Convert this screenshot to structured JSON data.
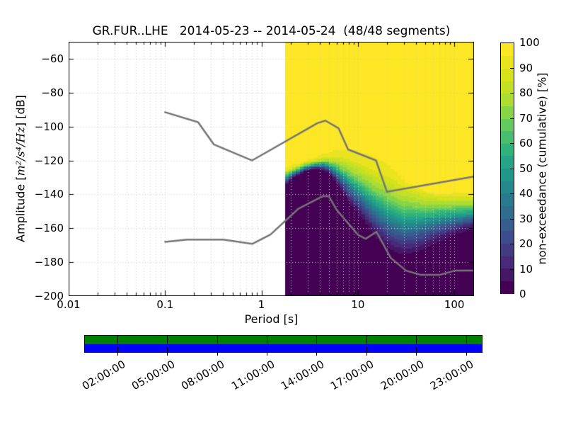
{
  "figure": {
    "title": "GR.FUR..LHE   2014-05-23 -- 2014-05-24  (48/48 segments)"
  },
  "axes": {
    "xlabel": "Period [s]",
    "ylabel_prefix": "Amplitude [",
    "ylabel_math": "m²/s⁴/Hz",
    "ylabel_suffix": "] [dB]",
    "x_tick_labels": [
      "0.01",
      "0.1",
      "1",
      "10",
      "100"
    ],
    "x_tick_values": [
      0.01,
      0.1,
      1,
      10,
      100
    ],
    "y_tick_labels": [
      "−60",
      "−80",
      "−100",
      "−120",
      "−140",
      "−160",
      "−180",
      "−200"
    ],
    "y_tick_values": [
      -60,
      -80,
      -100,
      -120,
      -140,
      -160,
      -180,
      -200
    ],
    "xlim": [
      0.01,
      160
    ],
    "ylim": [
      -200,
      -50
    ]
  },
  "colorbar": {
    "label": "non-exceedance (cumulative) [%]",
    "tick_values": [
      0,
      10,
      20,
      30,
      40,
      50,
      60,
      70,
      80,
      90,
      100
    ],
    "n_color_steps": 20
  },
  "coverage": {
    "tick_labels": [
      "02:00:00",
      "05:00:00",
      "08:00:00",
      "11:00:00",
      "14:00:00",
      "17:00:00",
      "20:00:00",
      "23:00:00"
    ],
    "tick_hours": [
      2,
      5,
      8,
      11,
      14,
      17,
      20,
      23
    ],
    "span_hours": 24
  },
  "colors": {
    "background": "#ffffff",
    "axis": "#000000",
    "grid": "#cccccc",
    "noise_model_line": "#757575",
    "coverage_green": "#008000",
    "coverage_blue": "#0000ff",
    "viridis_stops": [
      "#440154",
      "#482878",
      "#3e4989",
      "#31688e",
      "#26828e",
      "#1f9e89",
      "#35b779",
      "#6ece58",
      "#b5de2b",
      "#d8e219",
      "#fde725"
    ]
  },
  "chart_data": {
    "type": "heatmap",
    "title": "GR.FUR..LHE   2014-05-23 -- 2014-05-24  (48/48 segments)",
    "xlabel": "Period [s]",
    "ylabel": "Amplitude [m²/s⁴/Hz] [dB]",
    "zlabel": "non-exceedance (cumulative) [%]",
    "xscale": "log",
    "xlim": [
      0.01,
      160
    ],
    "ylim": [
      -200,
      -50
    ],
    "zlim": [
      0,
      100
    ],
    "grid": true,
    "z_color_step_pct": 5,
    "data_period_range_s": [
      1.76,
      160
    ],
    "period_bin_octave_fraction": 0.125,
    "db_bin_width": 1,
    "percentile_periods_s": [
      1.76,
      2.2,
      2.8,
      3.6,
      4.6,
      5.8,
      7.3,
      9.2,
      11.6,
      14.7,
      18.5,
      23,
      29,
      37,
      47,
      59,
      74,
      94,
      118,
      149,
      178
    ],
    "percentile_levels_pct": [
      0,
      10,
      30,
      50,
      70,
      90,
      100
    ],
    "percentile_curves_db": [
      [
        -136,
        -131,
        -127,
        -125.5,
        -126.5,
        -134,
        -143,
        -152,
        -159,
        -167,
        -173,
        -176.5,
        -178.5,
        -178,
        -176,
        -173.5,
        -170.5,
        -167.5,
        -165,
        -163,
        -162
      ],
      [
        -134,
        -129.5,
        -126,
        -124.5,
        -125,
        -131,
        -139,
        -146.5,
        -153,
        -160,
        -166,
        -170,
        -172,
        -171.5,
        -169.5,
        -167,
        -164.5,
        -162,
        -160,
        -158.5,
        -158
      ],
      [
        -132,
        -128,
        -125,
        -123.5,
        -123.5,
        -128,
        -134,
        -140,
        -146,
        -152,
        -157,
        -160.5,
        -162.5,
        -162.5,
        -161,
        -159.5,
        -158,
        -156.5,
        -155.5,
        -154.5,
        -154
      ],
      [
        -130.5,
        -127,
        -124,
        -122.5,
        -122,
        -125.5,
        -130,
        -135,
        -140,
        -145,
        -149.5,
        -152.5,
        -154.5,
        -155,
        -154.5,
        -154,
        -153,
        -152.5,
        -152,
        -151.5,
        -151.5
      ],
      [
        -128.5,
        -125.5,
        -123,
        -121.5,
        -120.5,
        -122.5,
        -126,
        -129.5,
        -133.5,
        -137.5,
        -141,
        -144,
        -146.5,
        -147.5,
        -148,
        -148,
        -147.5,
        -147.5,
        -147,
        -147,
        -147
      ],
      [
        -126,
        -123.5,
        -121,
        -119.5,
        -118,
        -117.5,
        -118.5,
        -120.5,
        -123,
        -126,
        -128.5,
        -131.5,
        -134.5,
        -137,
        -139,
        -140.5,
        -141,
        -141,
        -141,
        -141.5,
        -141.5
      ],
      [
        -123.5,
        -121,
        -119,
        -117,
        -114,
        -111,
        -109,
        -108,
        -108.5,
        -110.5,
        -113,
        -119,
        -127,
        -133,
        -136.5,
        -138.5,
        -139,
        -138,
        -137.5,
        -136.5,
        -136
      ]
    ],
    "gray_reference_lines": {
      "upper_period_db": [
        [
          0.1,
          -91.5
        ],
        [
          0.22,
          -97.4
        ],
        [
          0.32,
          -110.5
        ],
        [
          0.8,
          -120
        ],
        [
          3.8,
          -98
        ],
        [
          4.6,
          -96.5
        ],
        [
          6.3,
          -101
        ],
        [
          7.9,
          -113.5
        ],
        [
          15.4,
          -120
        ],
        [
          20,
          -138.5
        ],
        [
          160,
          -129.5
        ]
      ],
      "lower_period_db": [
        [
          0.1,
          -168
        ],
        [
          0.17,
          -166.7
        ],
        [
          0.4,
          -166.7
        ],
        [
          0.8,
          -169.2
        ],
        [
          1.24,
          -163.7
        ],
        [
          2.4,
          -148.6
        ],
        [
          4.3,
          -141.1
        ],
        [
          5,
          -141.1
        ],
        [
          6,
          -149
        ],
        [
          10,
          -163.8
        ],
        [
          12,
          -166.2
        ],
        [
          15.6,
          -162.1
        ],
        [
          21.9,
          -177.5
        ],
        [
          31.6,
          -185
        ],
        [
          45,
          -187.5
        ],
        [
          70,
          -187.5
        ],
        [
          101,
          -185
        ],
        [
          154,
          -185
        ],
        [
          160,
          -185.2
        ]
      ]
    }
  }
}
